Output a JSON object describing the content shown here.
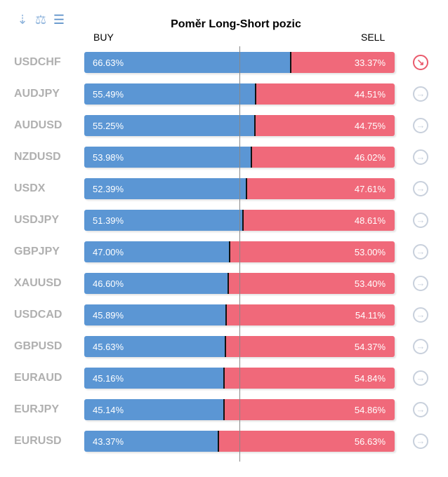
{
  "toolbar": {
    "icons": [
      "sort-alpha-icon",
      "balance-icon",
      "sort-amount-icon"
    ]
  },
  "title": "Poměr Long-Short pozic",
  "buy_label": "BUY",
  "sell_label": "SELL",
  "colors": {
    "buy": "#5b96d4",
    "sell": "#f0697a",
    "neutral_icon": "#c8d0dc",
    "alert_icon": "#ea5a6c"
  },
  "rows": [
    {
      "symbol": "USDCHF",
      "buy": "66.63%",
      "sell": "33.37%",
      "buy_value": 66.63,
      "icon": "arrow-down-right-icon"
    },
    {
      "symbol": "AUDJPY",
      "buy": "55.49%",
      "sell": "44.51%",
      "buy_value": 55.49,
      "icon": "arrow-right-icon"
    },
    {
      "symbol": "AUDUSD",
      "buy": "55.25%",
      "sell": "44.75%",
      "buy_value": 55.25,
      "icon": "arrow-right-icon"
    },
    {
      "symbol": "NZDUSD",
      "buy": "53.98%",
      "sell": "46.02%",
      "buy_value": 53.98,
      "icon": "arrow-right-icon"
    },
    {
      "symbol": "USDX",
      "buy": "52.39%",
      "sell": "47.61%",
      "buy_value": 52.39,
      "icon": "arrow-right-icon"
    },
    {
      "symbol": "USDJPY",
      "buy": "51.39%",
      "sell": "48.61%",
      "buy_value": 51.39,
      "icon": "arrow-right-icon"
    },
    {
      "symbol": "GBPJPY",
      "buy": "47.00%",
      "sell": "53.00%",
      "buy_value": 47.0,
      "icon": "arrow-right-icon"
    },
    {
      "symbol": "XAUUSD",
      "buy": "46.60%",
      "sell": "53.40%",
      "buy_value": 46.6,
      "icon": "arrow-right-icon"
    },
    {
      "symbol": "USDCAD",
      "buy": "45.89%",
      "sell": "54.11%",
      "buy_value": 45.89,
      "icon": "arrow-right-icon"
    },
    {
      "symbol": "GBPUSD",
      "buy": "45.63%",
      "sell": "54.37%",
      "buy_value": 45.63,
      "icon": "arrow-right-icon"
    },
    {
      "symbol": "EURAUD",
      "buy": "45.16%",
      "sell": "54.84%",
      "buy_value": 45.16,
      "icon": "arrow-right-icon"
    },
    {
      "symbol": "EURJPY",
      "buy": "45.14%",
      "sell": "54.86%",
      "buy_value": 45.14,
      "icon": "arrow-right-icon"
    },
    {
      "symbol": "EURUSD",
      "buy": "43.37%",
      "sell": "56.63%",
      "buy_value": 43.37,
      "icon": "arrow-right-icon"
    }
  ]
}
